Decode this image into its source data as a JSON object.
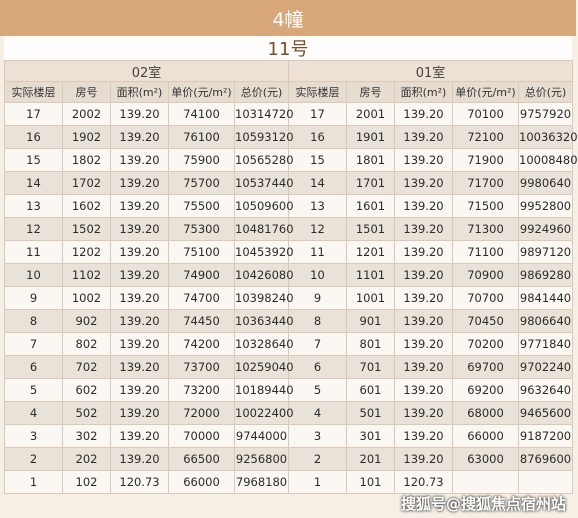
{
  "building": "4幢",
  "unit": "11号",
  "rooms": [
    "02室",
    "01室"
  ],
  "columns": [
    "实际楼层",
    "房号",
    "面积(m²)",
    "单价(元/m²)",
    "总价(元)"
  ],
  "rows": [
    [
      [
        "17",
        "2002",
        "139.20",
        "74100",
        "10314720"
      ],
      [
        "17",
        "2001",
        "139.20",
        "70100",
        "9757920"
      ]
    ],
    [
      [
        "16",
        "1902",
        "139.20",
        "76100",
        "10593120"
      ],
      [
        "16",
        "1901",
        "139.20",
        "72100",
        "10036320"
      ]
    ],
    [
      [
        "15",
        "1802",
        "139.20",
        "75900",
        "10565280"
      ],
      [
        "15",
        "1801",
        "139.20",
        "71900",
        "10008480"
      ]
    ],
    [
      [
        "14",
        "1702",
        "139.20",
        "75700",
        "10537440"
      ],
      [
        "14",
        "1701",
        "139.20",
        "71700",
        "9980640"
      ]
    ],
    [
      [
        "13",
        "1602",
        "139.20",
        "75500",
        "10509600"
      ],
      [
        "13",
        "1601",
        "139.20",
        "71500",
        "9952800"
      ]
    ],
    [
      [
        "12",
        "1502",
        "139.20",
        "75300",
        "10481760"
      ],
      [
        "12",
        "1501",
        "139.20",
        "71300",
        "9924960"
      ]
    ],
    [
      [
        "11",
        "1202",
        "139.20",
        "75100",
        "10453920"
      ],
      [
        "11",
        "1201",
        "139.20",
        "71100",
        "9897120"
      ]
    ],
    [
      [
        "10",
        "1102",
        "139.20",
        "74900",
        "10426080"
      ],
      [
        "10",
        "1101",
        "139.20",
        "70900",
        "9869280"
      ]
    ],
    [
      [
        "9",
        "1002",
        "139.20",
        "74700",
        "10398240"
      ],
      [
        "9",
        "1001",
        "139.20",
        "70700",
        "9841440"
      ]
    ],
    [
      [
        "8",
        "902",
        "139.20",
        "74450",
        "10363440"
      ],
      [
        "8",
        "901",
        "139.20",
        "70450",
        "9806640"
      ]
    ],
    [
      [
        "7",
        "802",
        "139.20",
        "74200",
        "10328640"
      ],
      [
        "7",
        "801",
        "139.20",
        "70200",
        "9771840"
      ]
    ],
    [
      [
        "6",
        "702",
        "139.20",
        "73700",
        "10259040"
      ],
      [
        "6",
        "701",
        "139.20",
        "69700",
        "9702240"
      ]
    ],
    [
      [
        "5",
        "602",
        "139.20",
        "73200",
        "10189440"
      ],
      [
        "5",
        "601",
        "139.20",
        "69200",
        "9632640"
      ]
    ],
    [
      [
        "4",
        "502",
        "139.20",
        "72000",
        "10022400"
      ],
      [
        "4",
        "501",
        "139.20",
        "68000",
        "9465600"
      ]
    ],
    [
      [
        "3",
        "302",
        "139.20",
        "70000",
        "9744000"
      ],
      [
        "3",
        "301",
        "139.20",
        "66000",
        "9187200"
      ]
    ],
    [
      [
        "2",
        "202",
        "139.20",
        "66500",
        "9256800"
      ],
      [
        "2",
        "201",
        "139.20",
        "63000",
        "8769600"
      ]
    ],
    [
      [
        "1",
        "102",
        "120.73",
        "66000",
        "7968180"
      ],
      [
        "1",
        "101",
        "120.73",
        "",
        ""
      ]
    ]
  ],
  "watermark": "搜狐号@搜狐焦点宿州站"
}
